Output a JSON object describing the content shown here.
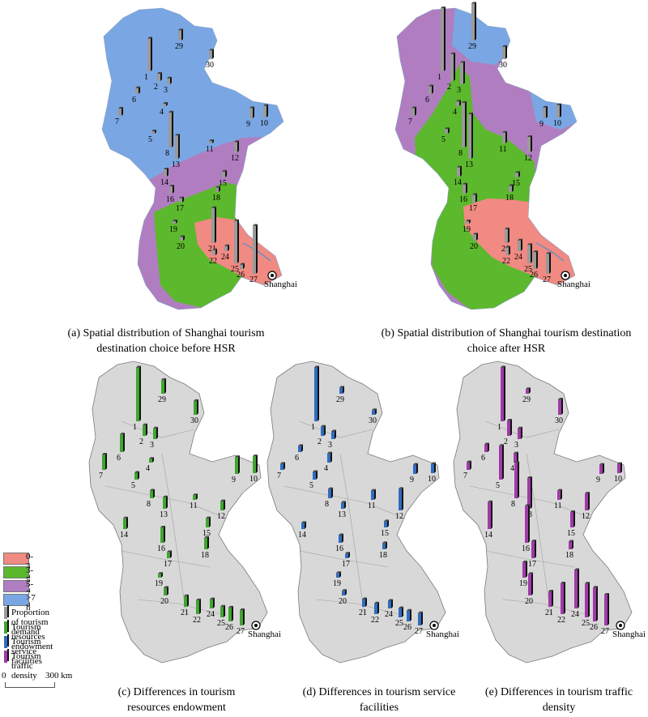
{
  "captions": {
    "a": "(a) Spatial distribution of Shanghai tourism destination choice before HSR",
    "b": "(b) Spatial distribution of Shanghai tourism destination choice after HSR",
    "c": "(c) Differences in tourism resources endowment",
    "d": "(d) Differences in tourism service facilities",
    "e": "(e) Differences in tourism traffic density"
  },
  "destination_label": "Shanghai",
  "legend": {
    "zones": [
      {
        "label": "0-3 h",
        "color": "#f08a82"
      },
      {
        "label": "3-5 h",
        "color": "#5cb82c"
      },
      {
        "label": "5-7 h",
        "color": "#b07ec0"
      },
      {
        "label": ">7 h",
        "color": "#7aa7e3"
      }
    ],
    "bars": [
      {
        "label": "Proportion of tourism demand",
        "color": "#9a9a9a"
      },
      {
        "label": "Tourism resources endowment",
        "color": "#3fa530"
      },
      {
        "label": "Tourism service facilities",
        "color": "#2f6cc0"
      },
      {
        "label": "Tourism traffic density",
        "color": "#a03aa8"
      }
    ]
  },
  "scale": {
    "start": "0",
    "end": "300 km"
  },
  "cities": [
    "1",
    "2",
    "3",
    "4",
    "5",
    "6",
    "7",
    "8",
    "9",
    "10",
    "11",
    "12",
    "13",
    "14",
    "15",
    "16",
    "17",
    "18",
    "19",
    "20",
    "21",
    "22",
    "24",
    "25",
    "26",
    "27",
    "29",
    "30"
  ],
  "chart_data": {
    "type": "map",
    "panels": [
      {
        "panel": "a",
        "variable": "Proportion of tourism demand",
        "time": "before HSR",
        "values": [
          45,
          10,
          8,
          3,
          3,
          8,
          10,
          48,
          14,
          16,
          3,
          14,
          32,
          10,
          8,
          10,
          6,
          6,
          3,
          5,
          48,
          7,
          7,
          58,
          6,
          66,
          14,
          12
        ]
      },
      {
        "panel": "b",
        "variable": "Proportion of tourism demand",
        "time": "after HSR",
        "values": [
          82,
          35,
          28,
          6,
          6,
          10,
          10,
          58,
          14,
          16,
          14,
          20,
          58,
          12,
          6,
          12,
          10,
          8,
          3,
          8,
          18,
          10,
          14,
          24,
          22,
          26,
          48,
          16
        ]
      },
      {
        "panel": "c",
        "variable": "Tourism resources endowment",
        "values": [
          70,
          14,
          14,
          5,
          9,
          23,
          20,
          10,
          22,
          22,
          6,
          12,
          15,
          14,
          12,
          20,
          8,
          15,
          5,
          10,
          14,
          18,
          12,
          14,
          18,
          20,
          18,
          18
        ]
      },
      {
        "panel": "d",
        "variable": "Tourism service facilities",
        "values": [
          70,
          12,
          10,
          12,
          10,
          8,
          8,
          12,
          12,
          12,
          12,
          28,
          8,
          8,
          8,
          10,
          6,
          8,
          6,
          6,
          10,
          14,
          10,
          12,
          14,
          16,
          8,
          6
        ]
      },
      {
        "panel": "e",
        "variable": "Tourism traffic density",
        "values": [
          70,
          20,
          14,
          12,
          44,
          10,
          10,
          46,
          12,
          12,
          12,
          22,
          40,
          35,
          20,
          48,
          22,
          10,
          20,
          28,
          20,
          40,
          50,
          44,
          44,
          40,
          6,
          20
        ]
      }
    ]
  }
}
